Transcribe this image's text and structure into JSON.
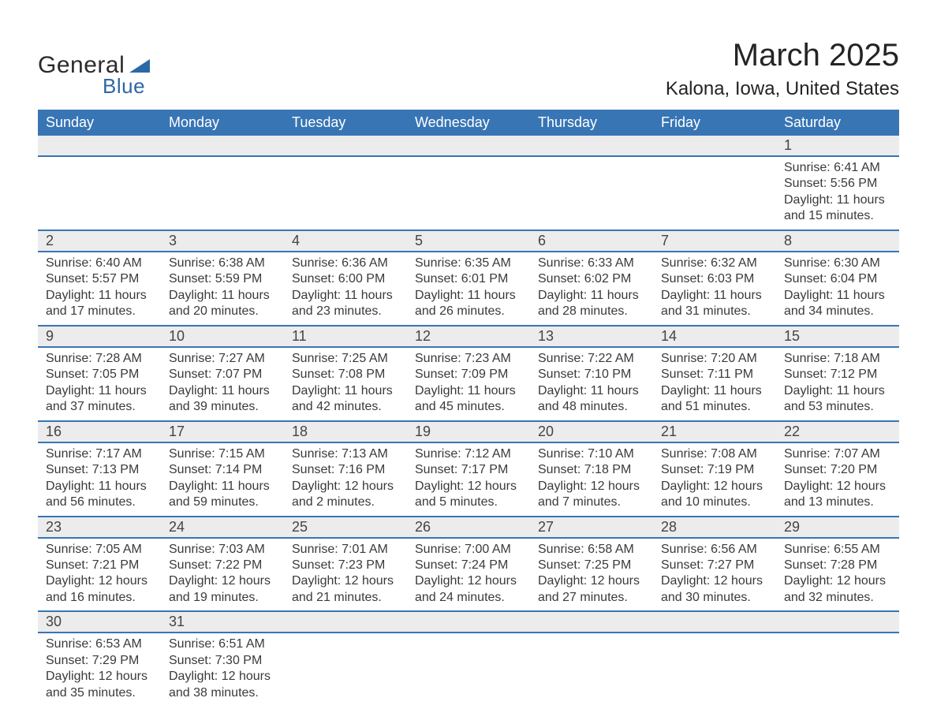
{
  "logo": {
    "general": "General",
    "blue": "Blue",
    "triangle_color": "#2d67a6"
  },
  "title": {
    "month": "March 2025",
    "location": "Kalona, Iowa, United States"
  },
  "styling": {
    "header_bg": "#3875b4",
    "header_text": "#ffffff",
    "daynum_bg": "#ececec",
    "row_divider": "#3875b4",
    "body_text": "#3a3a3a",
    "page_bg": "#ffffff"
  },
  "weekdays": [
    "Sunday",
    "Monday",
    "Tuesday",
    "Wednesday",
    "Thursday",
    "Friday",
    "Saturday"
  ],
  "weeks": [
    {
      "days": [
        null,
        null,
        null,
        null,
        null,
        null,
        {
          "n": "1",
          "sunrise": "Sunrise: 6:41 AM",
          "sunset": "Sunset: 5:56 PM",
          "dl1": "Daylight: 11 hours",
          "dl2": "and 15 minutes."
        }
      ]
    },
    {
      "days": [
        {
          "n": "2",
          "sunrise": "Sunrise: 6:40 AM",
          "sunset": "Sunset: 5:57 PM",
          "dl1": "Daylight: 11 hours",
          "dl2": "and 17 minutes."
        },
        {
          "n": "3",
          "sunrise": "Sunrise: 6:38 AM",
          "sunset": "Sunset: 5:59 PM",
          "dl1": "Daylight: 11 hours",
          "dl2": "and 20 minutes."
        },
        {
          "n": "4",
          "sunrise": "Sunrise: 6:36 AM",
          "sunset": "Sunset: 6:00 PM",
          "dl1": "Daylight: 11 hours",
          "dl2": "and 23 minutes."
        },
        {
          "n": "5",
          "sunrise": "Sunrise: 6:35 AM",
          "sunset": "Sunset: 6:01 PM",
          "dl1": "Daylight: 11 hours",
          "dl2": "and 26 minutes."
        },
        {
          "n": "6",
          "sunrise": "Sunrise: 6:33 AM",
          "sunset": "Sunset: 6:02 PM",
          "dl1": "Daylight: 11 hours",
          "dl2": "and 28 minutes."
        },
        {
          "n": "7",
          "sunrise": "Sunrise: 6:32 AM",
          "sunset": "Sunset: 6:03 PM",
          "dl1": "Daylight: 11 hours",
          "dl2": "and 31 minutes."
        },
        {
          "n": "8",
          "sunrise": "Sunrise: 6:30 AM",
          "sunset": "Sunset: 6:04 PM",
          "dl1": "Daylight: 11 hours",
          "dl2": "and 34 minutes."
        }
      ]
    },
    {
      "days": [
        {
          "n": "9",
          "sunrise": "Sunrise: 7:28 AM",
          "sunset": "Sunset: 7:05 PM",
          "dl1": "Daylight: 11 hours",
          "dl2": "and 37 minutes."
        },
        {
          "n": "10",
          "sunrise": "Sunrise: 7:27 AM",
          "sunset": "Sunset: 7:07 PM",
          "dl1": "Daylight: 11 hours",
          "dl2": "and 39 minutes."
        },
        {
          "n": "11",
          "sunrise": "Sunrise: 7:25 AM",
          "sunset": "Sunset: 7:08 PM",
          "dl1": "Daylight: 11 hours",
          "dl2": "and 42 minutes."
        },
        {
          "n": "12",
          "sunrise": "Sunrise: 7:23 AM",
          "sunset": "Sunset: 7:09 PM",
          "dl1": "Daylight: 11 hours",
          "dl2": "and 45 minutes."
        },
        {
          "n": "13",
          "sunrise": "Sunrise: 7:22 AM",
          "sunset": "Sunset: 7:10 PM",
          "dl1": "Daylight: 11 hours",
          "dl2": "and 48 minutes."
        },
        {
          "n": "14",
          "sunrise": "Sunrise: 7:20 AM",
          "sunset": "Sunset: 7:11 PM",
          "dl1": "Daylight: 11 hours",
          "dl2": "and 51 minutes."
        },
        {
          "n": "15",
          "sunrise": "Sunrise: 7:18 AM",
          "sunset": "Sunset: 7:12 PM",
          "dl1": "Daylight: 11 hours",
          "dl2": "and 53 minutes."
        }
      ]
    },
    {
      "days": [
        {
          "n": "16",
          "sunrise": "Sunrise: 7:17 AM",
          "sunset": "Sunset: 7:13 PM",
          "dl1": "Daylight: 11 hours",
          "dl2": "and 56 minutes."
        },
        {
          "n": "17",
          "sunrise": "Sunrise: 7:15 AM",
          "sunset": "Sunset: 7:14 PM",
          "dl1": "Daylight: 11 hours",
          "dl2": "and 59 minutes."
        },
        {
          "n": "18",
          "sunrise": "Sunrise: 7:13 AM",
          "sunset": "Sunset: 7:16 PM",
          "dl1": "Daylight: 12 hours",
          "dl2": "and 2 minutes."
        },
        {
          "n": "19",
          "sunrise": "Sunrise: 7:12 AM",
          "sunset": "Sunset: 7:17 PM",
          "dl1": "Daylight: 12 hours",
          "dl2": "and 5 minutes."
        },
        {
          "n": "20",
          "sunrise": "Sunrise: 7:10 AM",
          "sunset": "Sunset: 7:18 PM",
          "dl1": "Daylight: 12 hours",
          "dl2": "and 7 minutes."
        },
        {
          "n": "21",
          "sunrise": "Sunrise: 7:08 AM",
          "sunset": "Sunset: 7:19 PM",
          "dl1": "Daylight: 12 hours",
          "dl2": "and 10 minutes."
        },
        {
          "n": "22",
          "sunrise": "Sunrise: 7:07 AM",
          "sunset": "Sunset: 7:20 PM",
          "dl1": "Daylight: 12 hours",
          "dl2": "and 13 minutes."
        }
      ]
    },
    {
      "days": [
        {
          "n": "23",
          "sunrise": "Sunrise: 7:05 AM",
          "sunset": "Sunset: 7:21 PM",
          "dl1": "Daylight: 12 hours",
          "dl2": "and 16 minutes."
        },
        {
          "n": "24",
          "sunrise": "Sunrise: 7:03 AM",
          "sunset": "Sunset: 7:22 PM",
          "dl1": "Daylight: 12 hours",
          "dl2": "and 19 minutes."
        },
        {
          "n": "25",
          "sunrise": "Sunrise: 7:01 AM",
          "sunset": "Sunset: 7:23 PM",
          "dl1": "Daylight: 12 hours",
          "dl2": "and 21 minutes."
        },
        {
          "n": "26",
          "sunrise": "Sunrise: 7:00 AM",
          "sunset": "Sunset: 7:24 PM",
          "dl1": "Daylight: 12 hours",
          "dl2": "and 24 minutes."
        },
        {
          "n": "27",
          "sunrise": "Sunrise: 6:58 AM",
          "sunset": "Sunset: 7:25 PM",
          "dl1": "Daylight: 12 hours",
          "dl2": "and 27 minutes."
        },
        {
          "n": "28",
          "sunrise": "Sunrise: 6:56 AM",
          "sunset": "Sunset: 7:27 PM",
          "dl1": "Daylight: 12 hours",
          "dl2": "and 30 minutes."
        },
        {
          "n": "29",
          "sunrise": "Sunrise: 6:55 AM",
          "sunset": "Sunset: 7:28 PM",
          "dl1": "Daylight: 12 hours",
          "dl2": "and 32 minutes."
        }
      ]
    },
    {
      "days": [
        {
          "n": "30",
          "sunrise": "Sunrise: 6:53 AM",
          "sunset": "Sunset: 7:29 PM",
          "dl1": "Daylight: 12 hours",
          "dl2": "and 35 minutes."
        },
        {
          "n": "31",
          "sunrise": "Sunrise: 6:51 AM",
          "sunset": "Sunset: 7:30 PM",
          "dl1": "Daylight: 12 hours",
          "dl2": "and 38 minutes."
        },
        null,
        null,
        null,
        null,
        null
      ]
    }
  ]
}
